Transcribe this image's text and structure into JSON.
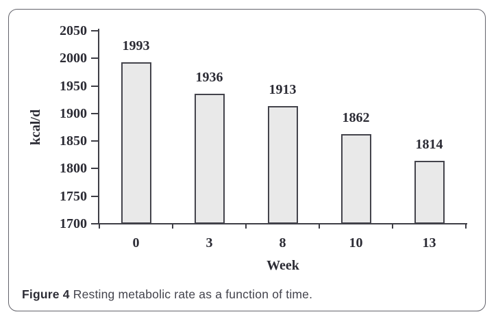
{
  "caption": {
    "label": "Figure 4",
    "text": " Resting metabolic rate as a function of time."
  },
  "chart_data": {
    "type": "bar",
    "title": "",
    "categories": [
      "0",
      "3",
      "8",
      "10",
      "13"
    ],
    "values": [
      1993,
      1936,
      1913,
      1862,
      1814
    ],
    "bar_labels": [
      "1993",
      "1936",
      "1913",
      "1862",
      "1814"
    ],
    "xlabel": "Week",
    "ylabel": "kcal/d",
    "ylim": [
      1700,
      2050
    ],
    "ytick_step": 50,
    "yticks": [
      1700,
      1750,
      1800,
      1850,
      1900,
      1950,
      2000,
      2050
    ],
    "grid": false,
    "legend": "none",
    "colors": {
      "bar_fill": "#e9e9e9",
      "bar_border": "#43434b",
      "axis": "#3d3d45",
      "chart_text": "#2b2b34",
      "caption_text": "#43434c",
      "card_border": "#62626a",
      "background": "#ffffff"
    }
  }
}
